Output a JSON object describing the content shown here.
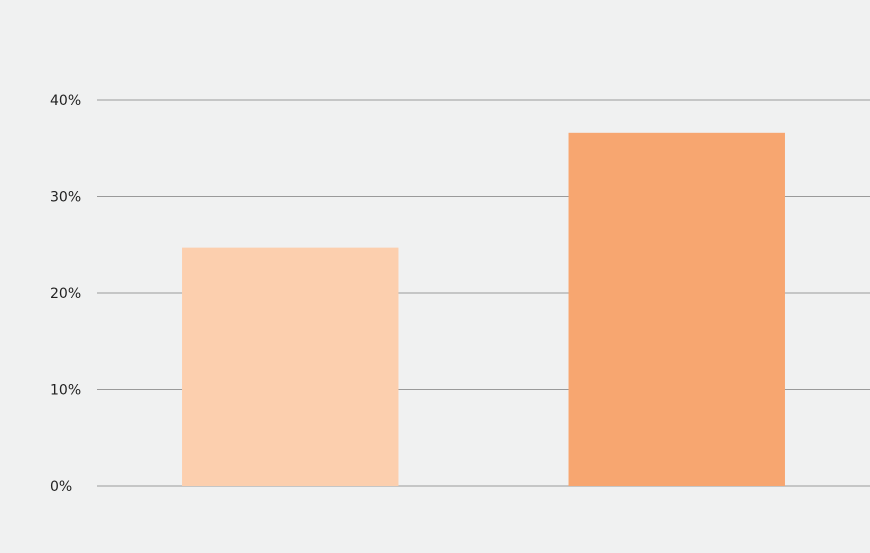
{
  "chart_data": {
    "type": "bar",
    "title": "",
    "subtitle": "",
    "xlabel": "",
    "ylabel": "",
    "categories": [
      "",
      ""
    ],
    "values": [
      24.7,
      36.6
    ],
    "ylim": [
      0,
      40
    ],
    "yticks": [
      0,
      10,
      20,
      30,
      40
    ],
    "ytick_format": "{v}%",
    "grid": true,
    "legend": "none",
    "bar_colors": [
      "#fccfae",
      "#f7a670"
    ],
    "gridline_color": "#9a9a9a",
    "tick_label_color": "#222222"
  }
}
